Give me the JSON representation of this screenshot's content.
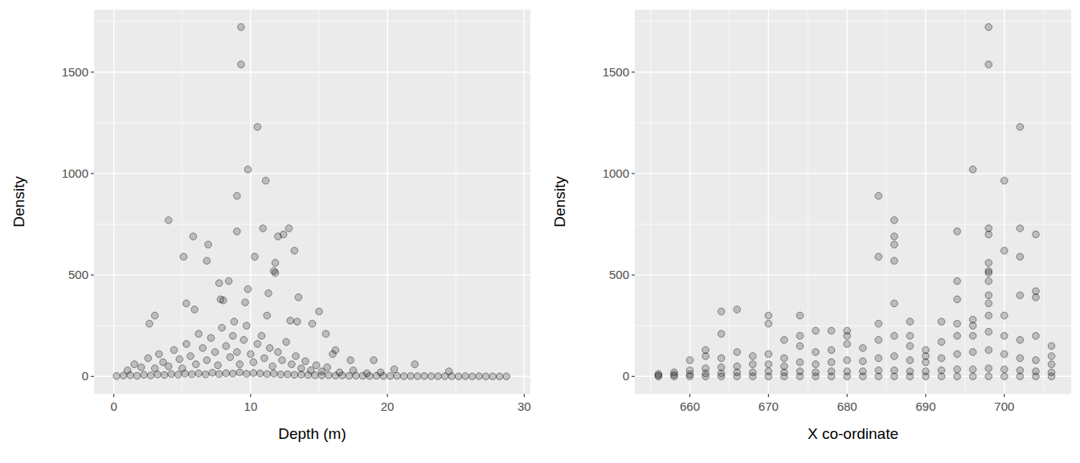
{
  "chart_data": [
    {
      "type": "scatter",
      "x_label": "Depth (m)",
      "y_label": "Density",
      "color": "#000000",
      "grid": true,
      "xlim": [
        -1.45,
        30.45
      ],
      "ylim": [
        -86,
        1808
      ],
      "xticks": [
        0,
        10,
        20,
        30
      ],
      "yticks": [
        0,
        500,
        1000,
        1500
      ],
      "x": [
        0.2,
        0.7,
        1.2,
        1.7,
        2.2,
        2.7,
        3.2,
        3.7,
        4.2,
        4.7,
        5.2,
        5.7,
        6.2,
        6.7,
        7.2,
        7.7,
        8.2,
        8.7,
        9.2,
        9.7,
        10.2,
        10.7,
        11.2,
        11.7,
        12.2,
        12.7,
        13.2,
        13.7,
        14.2,
        14.7,
        15.2,
        15.7,
        16.2,
        16.7,
        17.2,
        17.7,
        18.2,
        18.7,
        19.2,
        19.7,
        20.2,
        20.7,
        21.2,
        21.7,
        22.2,
        22.7,
        23.2,
        23.7,
        24.2,
        24.7,
        25.2,
        25.7,
        26.2,
        26.7,
        27.2,
        27.7,
        28.2,
        28.7,
        1.0,
        1.5,
        2.0,
        2.5,
        3.0,
        3.3,
        3.6,
        4.0,
        4.4,
        4.8,
        5.0,
        5.3,
        5.6,
        6.0,
        6.2,
        6.5,
        6.8,
        7.1,
        7.4,
        7.6,
        7.9,
        8.2,
        8.5,
        8.7,
        9.0,
        9.2,
        9.5,
        9.7,
        10.0,
        10.2,
        10.5,
        10.8,
        11.0,
        11.4,
        11.6,
        12.0,
        12.3,
        12.6,
        13.0,
        13.3,
        13.7,
        14.0,
        14.4,
        14.8,
        15.2,
        15.6,
        16.5,
        17.5,
        18.5,
        19.5,
        9.3,
        9.3,
        10.5,
        9.8,
        11.1,
        9.0,
        4.0,
        10.9,
        12.8,
        9.0,
        5.8,
        12.4,
        12.0,
        6.9,
        13.2,
        5.1,
        10.3,
        6.8,
        11.8,
        11.7,
        11.8,
        8.4,
        7.7,
        9.8,
        11.3,
        13.5,
        9.6,
        5.3,
        7.8,
        8.0,
        15.0,
        3.0,
        5.9,
        11.2,
        2.6,
        13.4,
        14.5,
        12.9,
        8.8,
        15.5,
        16.2,
        16.0,
        17.3,
        19.0,
        22.0,
        20.5,
        24.5
      ],
      "values": [
        2,
        4,
        6,
        3,
        8,
        5,
        10,
        7,
        12,
        9,
        14,
        11,
        15,
        10,
        18,
        12,
        16,
        14,
        20,
        13,
        17,
        15,
        12,
        14,
        10,
        11,
        8,
        9,
        7,
        6,
        5,
        6,
        4,
        5,
        3,
        4,
        3,
        2,
        3,
        2,
        2,
        3,
        1,
        2,
        1,
        2,
        1,
        1,
        1,
        1,
        0,
        1,
        0,
        1,
        0,
        0,
        0,
        0,
        30,
        60,
        45,
        90,
        40,
        110,
        70,
        50,
        130,
        85,
        40,
        160,
        100,
        60,
        210,
        140,
        80,
        190,
        120,
        55,
        240,
        150,
        95,
        200,
        120,
        60,
        180,
        250,
        110,
        70,
        160,
        200,
        90,
        140,
        50,
        120,
        80,
        170,
        60,
        100,
        40,
        75,
        30,
        55,
        25,
        45,
        20,
        30,
        15,
        20,
        1722,
        1538,
        1230,
        1020,
        965,
        890,
        770,
        730,
        730,
        715,
        690,
        700,
        690,
        650,
        620,
        590,
        590,
        570,
        560,
        520,
        510,
        470,
        460,
        430,
        410,
        390,
        365,
        360,
        380,
        375,
        320,
        300,
        330,
        300,
        260,
        270,
        260,
        275,
        270,
        210,
        130,
        110,
        80,
        80,
        60,
        35,
        25
      ]
    },
    {
      "type": "scatter",
      "x_label": "X co-ordinate",
      "y_label": "Density",
      "color": "#000000",
      "grid": true,
      "xlim": [
        653,
        708.5
      ],
      "ylim": [
        -86,
        1808
      ],
      "xticks": [
        660,
        670,
        680,
        690,
        700
      ],
      "yticks": [
        0,
        500,
        1000,
        1500
      ],
      "x": [
        656,
        656,
        656,
        658,
        658,
        658,
        660,
        660,
        660,
        660,
        662,
        662,
        662,
        662,
        662,
        664,
        664,
        664,
        664,
        664,
        664,
        666,
        666,
        666,
        666,
        666,
        668,
        668,
        668,
        668,
        670,
        670,
        670,
        670,
        670,
        670,
        672,
        672,
        672,
        672,
        672,
        674,
        674,
        674,
        674,
        674,
        674,
        676,
        676,
        676,
        676,
        676,
        678,
        678,
        678,
        678,
        678,
        680,
        680,
        680,
        680,
        680,
        680,
        682,
        682,
        682,
        682,
        684,
        684,
        684,
        684,
        684,
        684,
        684,
        686,
        686,
        686,
        686,
        686,
        686,
        686,
        686,
        686,
        688,
        688,
        688,
        688,
        688,
        688,
        690,
        690,
        690,
        690,
        690,
        692,
        692,
        692,
        692,
        692,
        694,
        694,
        694,
        694,
        694,
        694,
        694,
        694,
        696,
        696,
        696,
        696,
        696,
        696,
        696,
        698,
        698,
        698,
        698,
        698,
        698,
        698,
        698,
        698,
        698,
        698,
        698,
        698,
        698,
        698,
        700,
        700,
        700,
        700,
        700,
        700,
        700,
        702,
        702,
        702,
        702,
        702,
        702,
        702,
        702,
        704,
        704,
        704,
        704,
        704,
        704,
        704,
        706,
        706,
        706,
        706,
        706
      ],
      "values": [
        0,
        5,
        12,
        0,
        8,
        20,
        0,
        10,
        30,
        80,
        0,
        15,
        40,
        100,
        130,
        0,
        15,
        45,
        90,
        210,
        320,
        0,
        20,
        50,
        120,
        330,
        0,
        20,
        60,
        100,
        0,
        25,
        60,
        110,
        260,
        300,
        0,
        20,
        50,
        90,
        180,
        0,
        25,
        70,
        150,
        200,
        300,
        0,
        20,
        60,
        120,
        225,
        0,
        25,
        70,
        130,
        225,
        0,
        25,
        80,
        160,
        200,
        225,
        0,
        25,
        75,
        140,
        0,
        30,
        90,
        180,
        260,
        590,
        890,
        0,
        30,
        100,
        200,
        360,
        570,
        650,
        690,
        770,
        0,
        25,
        80,
        150,
        200,
        270,
        0,
        25,
        70,
        100,
        130,
        0,
        30,
        90,
        170,
        270,
        0,
        35,
        110,
        200,
        260,
        380,
        470,
        715,
        0,
        35,
        120,
        200,
        250,
        280,
        1020,
        0,
        40,
        130,
        220,
        300,
        360,
        400,
        470,
        510,
        520,
        560,
        700,
        730,
        1538,
        1722,
        0,
        35,
        110,
        200,
        300,
        620,
        965,
        0,
        30,
        90,
        180,
        400,
        590,
        730,
        1230,
        0,
        25,
        80,
        200,
        390,
        420,
        700,
        0,
        20,
        60,
        100,
        150
      ]
    }
  ]
}
